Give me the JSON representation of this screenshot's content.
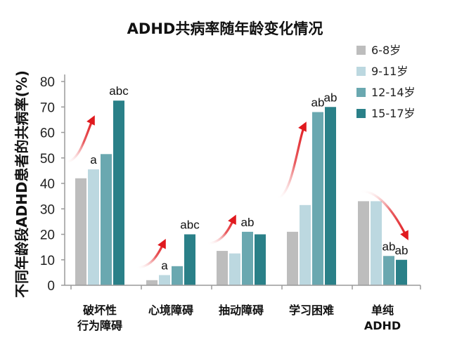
{
  "chart_data": {
    "type": "bar",
    "title": "ADHD共病率随年龄变化情况",
    "ylabel": "不同年龄段ADHD患者的共病率(%)",
    "xlabel": "",
    "ylim": [
      0,
      80
    ],
    "yticks": [
      0,
      10,
      20,
      30,
      40,
      50,
      60,
      70,
      80
    ],
    "categories": [
      [
        "破坏性",
        "行为障碍"
      ],
      [
        "心境障碍"
      ],
      [
        "抽动障碍"
      ],
      [
        "学习困难"
      ],
      [
        "单纯",
        "ADHD"
      ]
    ],
    "series": [
      {
        "name": "6-8岁",
        "color": "#bdbdbd",
        "values": [
          42,
          2,
          13.5,
          21,
          33
        ]
      },
      {
        "name": "9-11岁",
        "color": "#bcd8e0",
        "values": [
          45.5,
          4,
          12.5,
          31.5,
          33
        ]
      },
      {
        "name": "12-14岁",
        "color": "#6aa8b0",
        "values": [
          51.5,
          7.5,
          21,
          68,
          11.5
        ]
      },
      {
        "name": "15-17岁",
        "color": "#2a8088",
        "values": [
          72.5,
          20,
          20,
          70,
          10
        ]
      }
    ],
    "annotations": [
      {
        "category": 0,
        "series": 1,
        "text": "a"
      },
      {
        "category": 0,
        "series": 3,
        "text": "abc"
      },
      {
        "category": 1,
        "series": 1,
        "text": "a"
      },
      {
        "category": 1,
        "series": 3,
        "text": "abc"
      },
      {
        "category": 2,
        "series": 2,
        "text": "ab"
      },
      {
        "category": 3,
        "series": 2,
        "text": "ab"
      },
      {
        "category": 3,
        "series": 3,
        "text": "ab"
      },
      {
        "category": 4,
        "series": 2,
        "text": "ab"
      },
      {
        "category": 4,
        "series": 3,
        "text": "ab"
      }
    ],
    "trend_arrows": [
      {
        "category": 0,
        "direction": "up"
      },
      {
        "category": 1,
        "direction": "up"
      },
      {
        "category": 2,
        "direction": "up"
      },
      {
        "category": 3,
        "direction": "up"
      },
      {
        "category": 4,
        "direction": "down"
      }
    ],
    "arrow_color": "#e0191e",
    "axis_color": "#9a9a9a",
    "legend_position": "top-right",
    "grid": false
  }
}
